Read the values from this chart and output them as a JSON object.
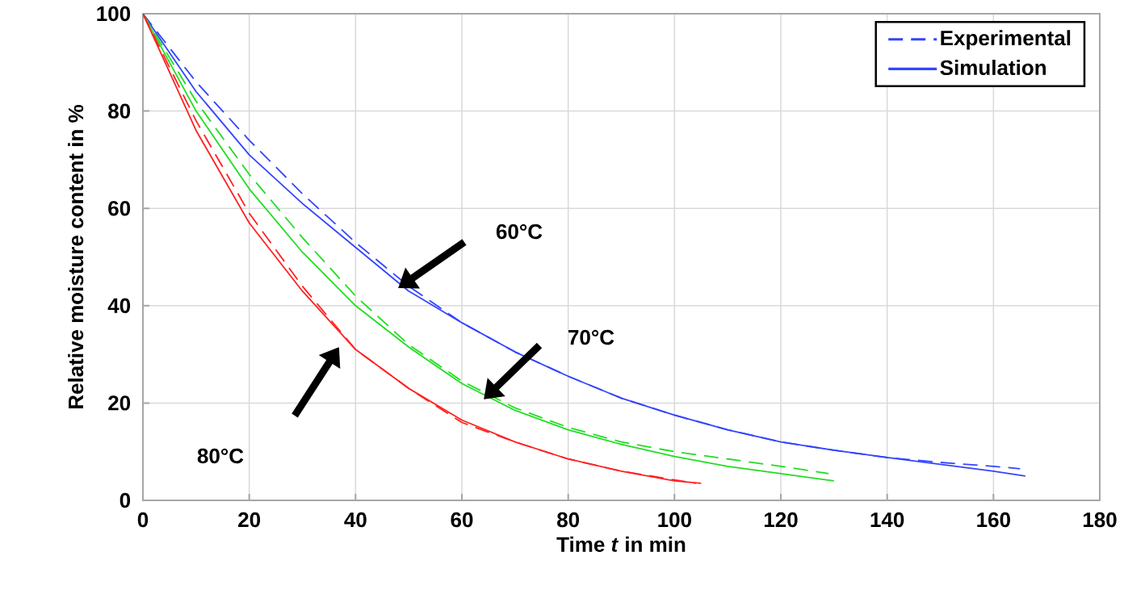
{
  "chart_data": {
    "type": "line",
    "xlabel": "Time *t* in min",
    "ylabel": "Relative moisture content in %",
    "xlim": [
      0,
      180
    ],
    "ylim": [
      0,
      100
    ],
    "xticks": [
      0,
      20,
      40,
      60,
      80,
      100,
      120,
      140,
      160,
      180
    ],
    "yticks": [
      0,
      20,
      40,
      60,
      80,
      100
    ],
    "grid": true,
    "legend": "top right",
    "marker": "none",
    "series": [
      {
        "name": "Experimental",
        "color": "#3344ff",
        "line_style": "dashed",
        "x": [
          0,
          10,
          20,
          30,
          40,
          50,
          60,
          70,
          80,
          90,
          100,
          110,
          120,
          130,
          140,
          150,
          160,
          165
        ],
        "values": [
          100,
          86,
          74,
          63,
          53,
          44,
          36.5,
          30.5,
          25.5,
          21,
          17.5,
          14.5,
          12,
          10.3,
          8.8,
          7.8,
          7,
          6.5
        ]
      },
      {
        "name": "Simulation",
        "color": "#3344ff",
        "line_style": "solid",
        "x": [
          0,
          10,
          20,
          30,
          40,
          50,
          60,
          70,
          80,
          90,
          100,
          110,
          120,
          130,
          140,
          150,
          160,
          166
        ],
        "values": [
          100,
          84,
          71,
          61,
          52,
          43,
          36.5,
          30.5,
          25.5,
          21,
          17.5,
          14.5,
          12,
          10.3,
          8.8,
          7.4,
          6,
          5
        ]
      },
      {
        "color": "#22dd22",
        "line_style": "dashed",
        "x": [
          0,
          10,
          20,
          30,
          40,
          50,
          60,
          70,
          80,
          90,
          100,
          110,
          120,
          129
        ],
        "values": [
          100,
          82,
          67,
          54,
          42,
          32,
          24.5,
          19,
          15,
          12,
          10,
          8.5,
          7,
          5.5
        ]
      },
      {
        "color": "#22dd22",
        "line_style": "solid",
        "x": [
          0,
          10,
          20,
          30,
          40,
          50,
          60,
          70,
          80,
          90,
          100,
          110,
          120,
          130
        ],
        "values": [
          100,
          80,
          64,
          51,
          40,
          31.5,
          24,
          18.5,
          14.5,
          11.5,
          9,
          7,
          5.5,
          4
        ]
      },
      {
        "color": "#ff2222",
        "line_style": "dashed",
        "x": [
          0,
          10,
          20,
          30,
          40,
          50,
          60,
          70,
          80,
          90,
          100,
          104
        ],
        "values": [
          100,
          78,
          59,
          44,
          31,
          23,
          16,
          12,
          8.5,
          6,
          4.2,
          3.5
        ]
      },
      {
        "color": "#ff2222",
        "line_style": "solid",
        "x": [
          0,
          10,
          20,
          30,
          40,
          50,
          60,
          70,
          80,
          90,
          100,
          105
        ],
        "values": [
          100,
          76,
          57,
          43,
          31,
          23,
          16.5,
          12,
          8.5,
          6,
          4,
          3.5
        ]
      }
    ],
    "annotations": [
      "60°C",
      "70°C",
      "80°C"
    ]
  }
}
